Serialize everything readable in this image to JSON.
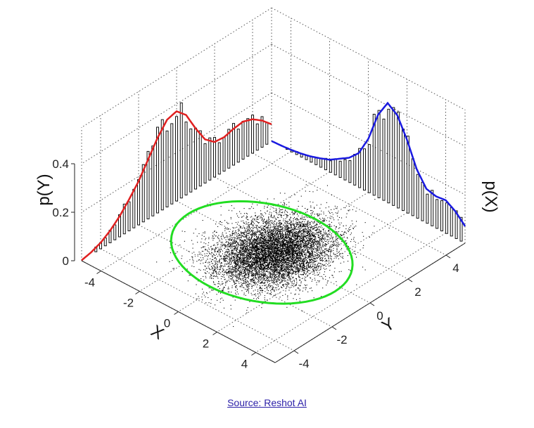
{
  "chart_data": {
    "type": "scatter",
    "subtype": "3d-scatter-with-marginal-histograms",
    "xlabel": "X",
    "ylabel": "Y",
    "zlabel_left": "p(Y)",
    "zlabel_right": "p(X)",
    "x_ticks": [
      "-4",
      "-2",
      "0",
      "2",
      "4"
    ],
    "y_ticks": [
      "-4",
      "-2",
      "0",
      "2",
      "4"
    ],
    "z_ticks": [
      "0",
      "0.2",
      "0.4"
    ],
    "xlim": [
      -5,
      5
    ],
    "ylim": [
      -5,
      5
    ],
    "zlim": [
      0,
      0.4
    ],
    "grid": true,
    "scatter": {
      "description_count": 8000,
      "mean": [
        0,
        0
      ],
      "std": [
        1.2,
        1.0
      ],
      "color": "#000000"
    },
    "ellipse": {
      "center": [
        0.3,
        -0.3
      ],
      "radii": [
        2.8,
        3.8
      ],
      "color": "#22dd22"
    },
    "marginal_p_y": {
      "color": "#e02020",
      "y": [
        -5,
        -4.5,
        -4,
        -3.5,
        -3,
        -2.5,
        -2,
        -1.5,
        -1,
        -0.5,
        0,
        0.5,
        1,
        1.5,
        2,
        2.5,
        3,
        3.5,
        4,
        4.5,
        5
      ],
      "density": [
        0.002,
        0.01,
        0.025,
        0.05,
        0.085,
        0.13,
        0.18,
        0.245,
        0.31,
        0.36,
        0.37,
        0.33,
        0.25,
        0.18,
        0.145,
        0.14,
        0.15,
        0.155,
        0.14,
        0.11,
        0.07
      ]
    },
    "marginal_p_x": {
      "color": "#1a1ae0",
      "x": [
        -5,
        -4.5,
        -4,
        -3.5,
        -3,
        -2.5,
        -2,
        -1.5,
        -1,
        -0.5,
        0,
        0.5,
        1,
        1.5,
        2,
        2.5,
        3,
        3.5,
        4,
        4.5,
        5
      ],
      "density": [
        0.07,
        0.11,
        0.135,
        0.13,
        0.14,
        0.2,
        0.3,
        0.38,
        0.41,
        0.34,
        0.22,
        0.14,
        0.1,
        0.075,
        0.05,
        0.035,
        0.022,
        0.013,
        0.007,
        0.003,
        0.001
      ]
    }
  },
  "footer": {
    "source_label": "Source: Reshot AI"
  }
}
